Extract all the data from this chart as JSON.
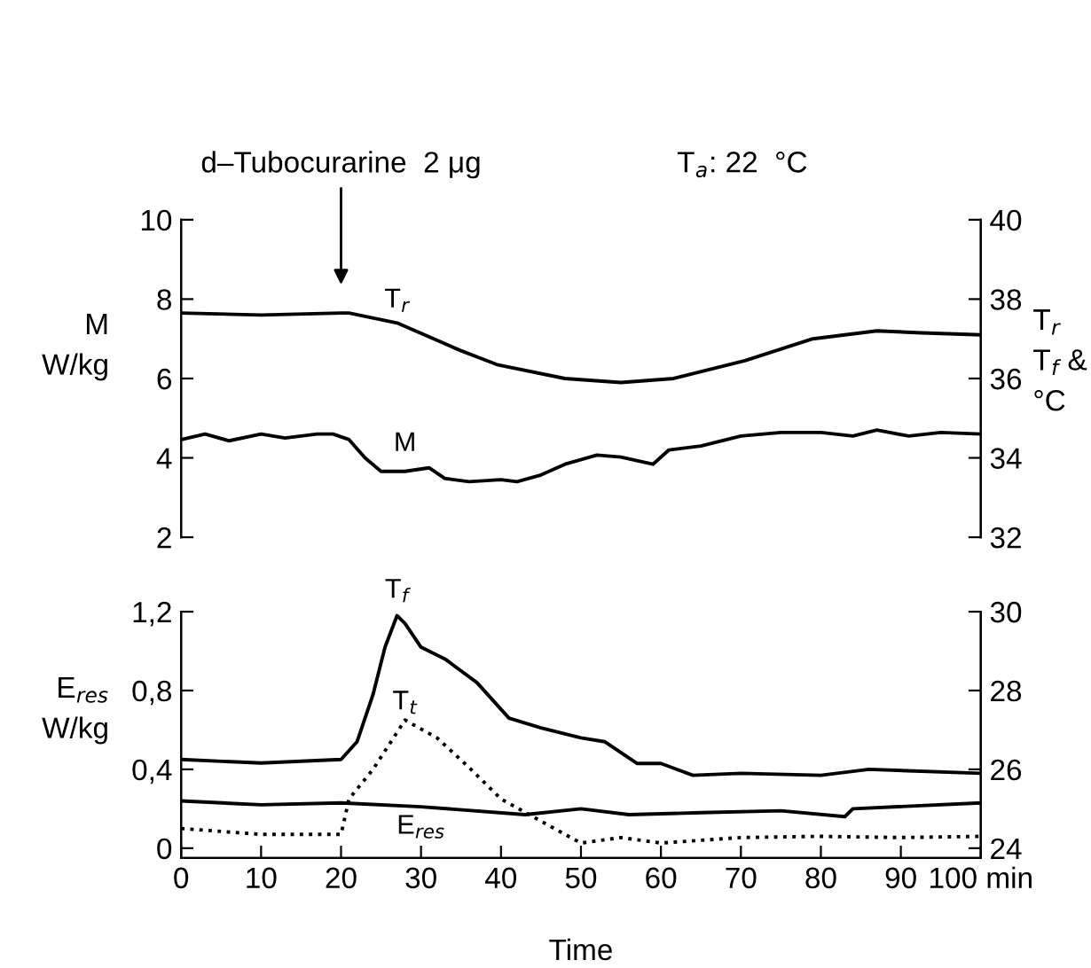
{
  "chart_data": [
    {
      "type": "line",
      "xlim": [
        0,
        100
      ],
      "ylim": [
        2,
        10
      ],
      "yticks": [
        2,
        4,
        6,
        8,
        10
      ],
      "y2lim": [
        32,
        40
      ],
      "y2ticks": [
        32,
        34,
        36,
        38,
        40
      ],
      "ylabel": "M\nW/kg",
      "y2label": "T$_{r}$\nT$_{f}$ &\n°C",
      "tick_labels": "y",
      "grid": false,
      "annotations": [
        "d–Tubocurarine  2 μg",
        "T$_{a}$: 22  °C"
      ],
      "series": [
        {
          "name": "T$_{r}$",
          "color": "#000000",
          "axis": "y2",
          "line_style": "solid",
          "x": [
            0,
            10,
            20,
            21,
            27,
            35,
            39.5,
            48,
            55,
            61.6,
            70.5,
            79,
            87,
            92.6,
            100
          ],
          "values": [
            37.65,
            37.6,
            37.65,
            37.65,
            37.4,
            36.7,
            36.35,
            36.0,
            35.9,
            36.0,
            36.45,
            37.0,
            37.2,
            37.15,
            37.1
          ]
        },
        {
          "name": "M",
          "color": "#000000",
          "line_style": "solid",
          "x": [
            0,
            3,
            6,
            10,
            13,
            17,
            19,
            21,
            23,
            25,
            28,
            31,
            33,
            36,
            40,
            42,
            45,
            48,
            52,
            55,
            59,
            61,
            65,
            70,
            75,
            80,
            84,
            87,
            91,
            95,
            100
          ],
          "values": [
            4.46,
            4.6,
            4.43,
            4.6,
            4.5,
            4.6,
            4.6,
            4.46,
            4.0,
            3.66,
            3.66,
            3.75,
            3.48,
            3.4,
            3.45,
            3.4,
            3.57,
            3.84,
            4.07,
            4.02,
            3.84,
            4.2,
            4.3,
            4.55,
            4.64,
            4.64,
            4.55,
            4.7,
            4.55,
            4.64,
            4.6
          ]
        }
      ]
    },
    {
      "type": "line",
      "xlim": [
        0,
        100
      ],
      "xticks": [
        0,
        10,
        20,
        30,
        40,
        50,
        60,
        70,
        80,
        90,
        {
          "value": 100,
          "label": "100 min"
        }
      ],
      "ylim": [
        -0.05,
        1.2
      ],
      "yticks": [
        {
          "value": 0,
          "label": "0"
        },
        {
          "value": 0.4,
          "label": "0,4"
        },
        {
          "value": 0.8,
          "label": "0,8"
        },
        {
          "value": 1.2,
          "label": "1,2"
        }
      ],
      "y2lim": [
        23.75,
        30
      ],
      "y2ticks": [
        24,
        26,
        28,
        30
      ],
      "xlabel": "Time",
      "ylabel": "E$_{res}$\nW/kg",
      "grid": false,
      "series": [
        {
          "name": "T$_{f}$",
          "color": "#000000",
          "axis": "y2",
          "line_style": "solid",
          "x": [
            0,
            10,
            20,
            22,
            24,
            25.5,
            27,
            28,
            30,
            33,
            37,
            41,
            45,
            50,
            53,
            57,
            60,
            64,
            70,
            80,
            86,
            100
          ],
          "values": [
            26.25,
            26.16,
            26.25,
            26.7,
            27.9,
            29.1,
            29.9,
            29.7,
            29.1,
            28.8,
            28.2,
            27.3,
            27.05,
            26.8,
            26.7,
            26.15,
            26.15,
            25.85,
            25.9,
            25.85,
            26.0,
            25.9
          ]
        },
        {
          "name": "T$_{t}$",
          "color": "#000000",
          "axis": "y2",
          "line_style": "dotted",
          "x": [
            0,
            10,
            20,
            21,
            24,
            28,
            32,
            36,
            40,
            44,
            48,
            50,
            55,
            60,
            70,
            80,
            90,
            100
          ],
          "values": [
            24.5,
            24.35,
            24.35,
            25.25,
            26.0,
            27.25,
            26.8,
            26.05,
            25.25,
            24.8,
            24.35,
            24.13,
            24.27,
            24.13,
            24.27,
            24.3,
            24.27,
            24.3
          ]
        },
        {
          "name": "E$_{res}$",
          "color": "#000000",
          "line_style": "solid",
          "x": [
            0,
            10,
            20,
            30,
            43,
            50,
            56,
            65,
            75,
            83,
            84,
            100
          ],
          "values": [
            0.24,
            0.22,
            0.23,
            0.21,
            0.17,
            0.2,
            0.17,
            0.18,
            0.19,
            0.16,
            0.2,
            0.23
          ]
        }
      ]
    }
  ]
}
